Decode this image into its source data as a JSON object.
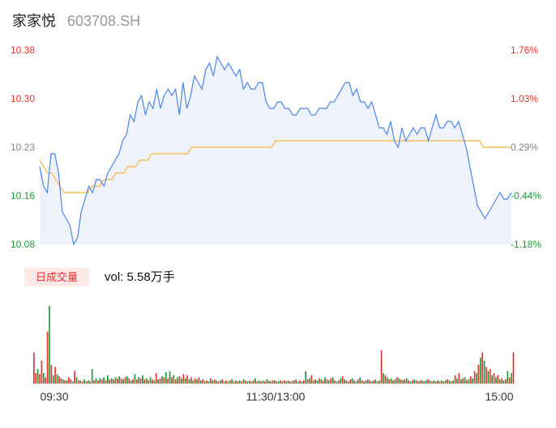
{
  "header": {
    "stock_name": "家家悦",
    "stock_code": "603708.SH"
  },
  "price_axis": {
    "left_ticks": [
      "10.38",
      "10.30",
      "10.23",
      "10.16",
      "10.08"
    ],
    "right_ticks": [
      "1.76%",
      "1.03%",
      "0.29%",
      "-0.44%",
      "-1.18%"
    ],
    "tick_colors": [
      "#e8312f",
      "#e8312f",
      "#888888",
      "#1a9a3a",
      "#1a9a3a"
    ]
  },
  "volume_panel": {
    "label": "日成交量",
    "vol_text": "vol: 5.58万手"
  },
  "time_axis": {
    "labels": [
      "09:30",
      "11:30/13:00",
      "15:00"
    ]
  },
  "colors": {
    "price_line": "#4a84e6",
    "price_fill": "#eef3fb",
    "avg_line": "#f5be5a",
    "up": "#e8312f",
    "down": "#1a9a3a",
    "label_bg": "#fde9e7",
    "label_text": "#e8312f"
  },
  "chart_data": {
    "type": "line",
    "ylim": [
      10.08,
      10.38
    ],
    "percent_range": [
      -1.18,
      1.76
    ],
    "x_range": [
      "09:30",
      "15:00"
    ],
    "series": [
      {
        "values": [
          10.2,
          10.17,
          10.16,
          10.22,
          10.22,
          10.19,
          10.13,
          10.12,
          10.11,
          10.08,
          10.09,
          10.13,
          10.15,
          10.17,
          10.16,
          10.18,
          10.18,
          10.17,
          10.19,
          10.2,
          10.21,
          10.22,
          10.24,
          10.25,
          10.28,
          10.27,
          10.3,
          10.31,
          10.28,
          10.3,
          10.29,
          10.32,
          10.29,
          10.31,
          10.32,
          10.31,
          10.32,
          10.28,
          10.33,
          10.29,
          10.31,
          10.34,
          10.33,
          10.32,
          10.35,
          10.36,
          10.34,
          10.37,
          10.36,
          10.35,
          10.36,
          10.35,
          10.34,
          10.35,
          10.32,
          10.33,
          10.32,
          10.32,
          10.33,
          10.33,
          10.3,
          10.29,
          10.29,
          10.3,
          10.3,
          10.29,
          10.29,
          10.28,
          10.28,
          10.29,
          10.29,
          10.29,
          10.28,
          10.28,
          10.29,
          10.29,
          10.29,
          10.3,
          10.3,
          10.31,
          10.32,
          10.33,
          10.33,
          10.31,
          10.32,
          10.3,
          10.3,
          10.29,
          10.3,
          10.28,
          10.26,
          10.26,
          10.25,
          10.27,
          10.24,
          10.23,
          10.26,
          10.24,
          10.25,
          10.26,
          10.25,
          10.26,
          10.26,
          10.24,
          10.26,
          10.28,
          10.26,
          10.26,
          10.27,
          10.27,
          10.26,
          10.27,
          10.25,
          10.23,
          10.2,
          10.17,
          10.14,
          10.13,
          10.12,
          10.13,
          10.14,
          10.15,
          10.16,
          10.15,
          10.15,
          10.16
        ],
        "x_start": "09:30",
        "x_end": "15:00"
      },
      {
        "values": [
          10.21,
          10.2,
          10.19,
          10.19,
          10.18,
          10.17,
          10.16,
          10.16,
          10.16,
          10.16,
          10.16,
          10.16,
          10.16,
          10.17,
          10.17,
          10.17,
          10.18,
          10.18,
          10.18,
          10.19,
          10.19,
          10.19,
          10.2,
          10.2,
          10.2,
          10.21,
          10.21,
          10.21,
          10.22,
          10.22,
          10.22,
          10.22,
          10.22,
          10.22,
          10.22,
          10.22,
          10.22,
          10.22,
          10.23,
          10.23,
          10.23,
          10.23,
          10.23,
          10.23,
          10.23,
          10.23,
          10.23,
          10.23,
          10.23,
          10.23,
          10.23,
          10.23,
          10.23,
          10.23,
          10.23,
          10.23,
          10.23,
          10.23,
          10.23,
          10.24,
          10.24,
          10.24,
          10.24,
          10.24,
          10.24,
          10.24,
          10.24,
          10.24,
          10.24,
          10.24,
          10.24,
          10.24,
          10.24,
          10.24,
          10.24,
          10.24,
          10.24,
          10.24,
          10.24,
          10.24,
          10.24,
          10.24,
          10.24,
          10.24,
          10.24,
          10.24,
          10.24,
          10.24,
          10.24,
          10.24,
          10.24,
          10.24,
          10.24,
          10.24,
          10.24,
          10.24,
          10.24,
          10.24,
          10.24,
          10.24,
          10.24,
          10.24,
          10.24,
          10.24,
          10.24,
          10.24,
          10.24,
          10.24,
          10.24,
          10.24,
          10.24,
          10.23,
          10.23,
          10.23,
          10.23,
          10.23,
          10.23,
          10.23,
          10.23
        ],
        "x_start": "09:30",
        "x_end": "15:00"
      }
    ],
    "volume": {
      "values": [
        30,
        10,
        14,
        9,
        22,
        10,
        6,
        50,
        75,
        18,
        8,
        16,
        9,
        7,
        5,
        4,
        3,
        3,
        6,
        4,
        2,
        12,
        6,
        3,
        3,
        2,
        4,
        2,
        3,
        2,
        14,
        3,
        5,
        3,
        5,
        4,
        6,
        3,
        8,
        4,
        5,
        4,
        6,
        5,
        7,
        5,
        4,
        6,
        7,
        5,
        3,
        4,
        9,
        4,
        6,
        5,
        8,
        4,
        5,
        3,
        6,
        4,
        3,
        10,
        4,
        5,
        7,
        6,
        11,
        5,
        12,
        6,
        8,
        4,
        6,
        7,
        5,
        9,
        5,
        8,
        4,
        6,
        3,
        5,
        4,
        6,
        3,
        4,
        2,
        3,
        2,
        5,
        3,
        4,
        3,
        2,
        3,
        4,
        2,
        3,
        2,
        3,
        4,
        2,
        3,
        2,
        3,
        2,
        4,
        3,
        2,
        3,
        2,
        3,
        5,
        2,
        3,
        2,
        3,
        2,
        4,
        3,
        2,
        3,
        3,
        2,
        2,
        3,
        2,
        3,
        2,
        3,
        2,
        2,
        3,
        4,
        2,
        3,
        2,
        3,
        12,
        4,
        5,
        8,
        3,
        4,
        3,
        5,
        4,
        3,
        6,
        4,
        3,
        5,
        6,
        3,
        2,
        3,
        5,
        7,
        4,
        3,
        2,
        4,
        5,
        3,
        2,
        4,
        6,
        3,
        2,
        3,
        4,
        3,
        2,
        3,
        4,
        2,
        3,
        32,
        10,
        8,
        6,
        4,
        5,
        3,
        4,
        6,
        5,
        4,
        3,
        4,
        5,
        3,
        2,
        3,
        4,
        3,
        2,
        3,
        3,
        2,
        3,
        4,
        3,
        2,
        3,
        2,
        3,
        2,
        3,
        2,
        3,
        4,
        3,
        2,
        3,
        8,
        5,
        10,
        4,
        5,
        6,
        3,
        4,
        7,
        5,
        12,
        10,
        18,
        25,
        30,
        22,
        16,
        12,
        14,
        8,
        10,
        6,
        8,
        4,
        5,
        3,
        4,
        12,
        6,
        10,
        30
      ],
      "up": [
        true,
        true,
        false,
        true,
        true,
        false,
        true,
        true,
        false,
        true,
        false,
        true,
        false,
        true,
        true,
        false,
        true,
        false,
        true,
        true,
        false,
        true,
        false,
        true,
        false,
        true,
        false,
        true,
        false,
        true,
        false,
        true,
        false,
        true,
        false,
        true,
        false,
        true,
        false,
        true,
        false,
        true,
        false,
        true,
        false,
        true,
        false,
        true,
        false,
        true,
        false,
        true,
        false,
        true,
        false,
        true,
        false,
        true,
        false,
        true,
        false,
        true,
        false,
        true,
        false,
        true,
        false,
        true,
        false,
        true,
        false,
        true,
        false,
        true,
        false,
        true,
        false,
        true,
        false,
        true,
        false,
        true,
        false,
        true,
        false,
        true,
        false,
        true,
        false,
        true,
        false,
        true,
        false,
        true,
        false,
        true,
        false,
        true,
        false,
        true,
        false,
        true,
        false,
        true,
        false,
        true,
        false,
        true,
        false,
        true,
        false,
        true,
        false,
        true,
        false,
        true,
        false,
        true,
        false,
        true,
        false,
        true,
        false,
        true,
        false,
        true,
        false,
        true,
        false,
        true,
        false,
        true,
        false,
        true,
        false,
        true,
        false,
        true,
        false,
        true,
        false,
        true,
        false,
        true,
        false,
        true,
        false,
        true,
        false,
        true,
        false,
        true,
        false,
        true,
        false,
        true,
        false,
        true,
        false,
        true,
        false,
        true,
        false,
        true,
        false,
        true,
        false,
        true,
        false,
        true,
        false,
        true,
        false,
        true,
        false,
        true,
        false,
        true,
        false,
        true,
        false,
        true,
        false,
        true,
        false,
        true,
        false,
        true,
        false,
        true,
        false,
        true,
        false,
        true,
        false,
        true,
        false,
        true,
        false,
        true,
        false,
        true,
        false,
        true,
        false,
        true,
        false,
        true,
        false,
        true,
        false,
        true,
        false,
        true,
        false,
        true,
        false,
        true,
        false,
        true,
        false,
        true,
        false,
        true,
        false,
        true,
        false,
        true,
        false,
        true,
        false,
        true,
        false,
        true,
        false,
        true,
        false,
        true,
        false,
        true,
        false,
        true,
        false,
        true,
        false,
        true,
        false,
        true,
        false,
        true,
        false,
        true,
        false,
        true,
        true
      ]
    }
  }
}
